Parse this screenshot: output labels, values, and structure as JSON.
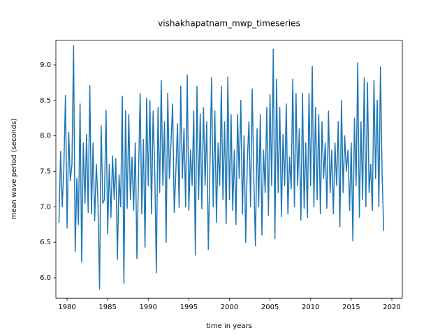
{
  "chart_data": {
    "type": "line",
    "title": "vishakhapatnam_mwp_timeseries",
    "x_label": "time in years",
    "y_label": "mean wave period (seconds)",
    "color": "#1f77b4",
    "xlim": [
      1978.62,
      2021.29
    ],
    "ylim": [
      5.713,
      9.348
    ],
    "xticks": [
      1980,
      1985,
      1990,
      1995,
      2000,
      2005,
      2010,
      2015,
      2020
    ],
    "yticks": [
      {
        "value": 6,
        "label": "6.0"
      },
      {
        "value": 6.5,
        "label": "6.5"
      },
      {
        "value": 7,
        "label": "7.0"
      },
      {
        "value": 7.5,
        "label": "7.5"
      },
      {
        "value": 8,
        "label": "8.0"
      },
      {
        "value": 8.5,
        "label": "8.5"
      },
      {
        "value": 9,
        "label": "9.0"
      }
    ],
    "x": [
      1979,
      1979.2,
      1979.4,
      1979.6,
      1979.8,
      1980,
      1980.2,
      1980.4,
      1980.6,
      1980.8,
      1981,
      1981.2,
      1981.4,
      1981.6,
      1981.8,
      1982,
      1982.2,
      1982.4,
      1982.6,
      1982.8,
      1983,
      1983.2,
      1983.4,
      1983.6,
      1983.8,
      1984,
      1984.2,
      1984.4,
      1984.6,
      1984.8,
      1985,
      1985.2,
      1985.4,
      1985.6,
      1985.8,
      1986,
      1986.2,
      1986.4,
      1986.6,
      1986.8,
      1987,
      1987.2,
      1987.4,
      1987.6,
      1987.8,
      1988,
      1988.2,
      1988.4,
      1988.6,
      1988.8,
      1989,
      1989.2,
      1989.4,
      1989.6,
      1989.8,
      1990,
      1990.2,
      1990.4,
      1990.6,
      1990.8,
      1991,
      1991.2,
      1991.4,
      1991.6,
      1991.8,
      1992,
      1992.2,
      1992.4,
      1992.6,
      1992.8,
      1993,
      1993.2,
      1993.4,
      1993.6,
      1993.8,
      1994,
      1994.2,
      1994.4,
      1994.6,
      1994.8,
      1995,
      1995.2,
      1995.4,
      1995.6,
      1995.8,
      1996,
      1996.2,
      1996.4,
      1996.6,
      1996.8,
      1997,
      1997.2,
      1997.4,
      1997.6,
      1997.8,
      1998,
      1998.2,
      1998.4,
      1998.6,
      1998.8,
      1999,
      1999.2,
      1999.4,
      1999.6,
      1999.8,
      2000,
      2000.2,
      2000.4,
      2000.6,
      2000.8,
      2001,
      2001.2,
      2001.4,
      2001.6,
      2001.8,
      2002,
      2002.2,
      2002.4,
      2002.6,
      2002.8,
      2003,
      2003.2,
      2003.4,
      2003.6,
      2003.8,
      2004,
      2004.2,
      2004.4,
      2004.6,
      2004.8,
      2005,
      2005.2,
      2005.4,
      2005.6,
      2005.8,
      2006,
      2006.2,
      2006.4,
      2006.6,
      2006.8,
      2007,
      2007.2,
      2007.4,
      2007.6,
      2007.8,
      2008,
      2008.2,
      2008.4,
      2008.6,
      2008.8,
      2009,
      2009.2,
      2009.4,
      2009.6,
      2009.8,
      2010,
      2010.2,
      2010.4,
      2010.6,
      2010.8,
      2011,
      2011.2,
      2011.4,
      2011.6,
      2011.8,
      2012,
      2012.2,
      2012.4,
      2012.6,
      2012.8,
      2013,
      2013.2,
      2013.4,
      2013.6,
      2013.8,
      2014,
      2014.2,
      2014.4,
      2014.6,
      2014.8,
      2015,
      2015.2,
      2015.4,
      2015.6,
      2015.8,
      2016,
      2016.2,
      2016.4,
      2016.6,
      2016.8,
      2017,
      2017.2,
      2017.4,
      2017.6,
      2017.8,
      2018,
      2018.2,
      2018.4,
      2018.6,
      2018.8,
      2019
    ],
    "values": [
      6.77,
      7.78,
      7.0,
      7.55,
      8.57,
      6.7,
      8.05,
      7.37,
      7.6,
      9.27,
      6.37,
      7.4,
      6.75,
      8.45,
      6.22,
      7.9,
      7.05,
      8.02,
      6.92,
      8.71,
      6.9,
      7.9,
      6.8,
      7.6,
      7.1,
      5.84,
      8.14,
      7.05,
      7.1,
      8.36,
      6.62,
      7.6,
      6.85,
      7.72,
      7.1,
      7.68,
      6.26,
      7.45,
      7.0,
      8.56,
      5.92,
      8.35,
      6.98,
      8.3,
      7.1,
      7.7,
      6.95,
      7.9,
      6.27,
      7.45,
      8.6,
      6.9,
      7.95,
      6.43,
      8.53,
      7.3,
      8.5,
      6.9,
      8.35,
      7.5,
      6.07,
      8.4,
      7.2,
      8.78,
      7.3,
      8.2,
      6.5,
      8.6,
      7.4,
      7.9,
      8.45,
      6.92,
      7.5,
      8.17,
      6.99,
      8.7,
      7.4,
      8.1,
      7.0,
      8.86,
      6.95,
      7.8,
      7.3,
      8.35,
      6.32,
      8.7,
      7.1,
      8.31,
      6.97,
      8.4,
      7.3,
      8.2,
      6.4,
      7.6,
      8.82,
      7.0,
      8.35,
      6.78,
      7.9,
      7.3,
      8.7,
      7.1,
      8.2,
      6.76,
      8.83,
      7.1,
      8.3,
      6.95,
      7.8,
      6.75,
      8.3,
      7.4,
      8.5,
      6.9,
      8.0,
      6.5,
      7.65,
      8.2,
      7.0,
      8.66,
      7.4,
      6.45,
      8.1,
      7.0,
      8.3,
      6.6,
      7.8,
      7.2,
      8.4,
      6.88,
      8.58,
      7.3,
      9.22,
      6.55,
      8.8,
      7.2,
      8.4,
      6.86,
      8.02,
      7.3,
      8.45,
      6.9,
      7.7,
      7.25,
      8.8,
      7.0,
      8.6,
      7.3,
      8.1,
      6.81,
      8.6,
      6.98,
      7.9,
      6.85,
      8.6,
      7.3,
      8.98,
      7.0,
      8.4,
      7.1,
      8.3,
      6.9,
      8.2,
      7.4,
      7.9,
      6.98,
      8.35,
      7.2,
      7.8,
      6.9,
      7.9,
      7.3,
      8.2,
      6.72,
      8.5,
      7.2,
      8.0,
      7.5,
      7.8,
      6.95,
      7.9,
      6.52,
      8.25,
      7.3,
      9.03,
      6.85,
      8.2,
      7.1,
      8.82,
      7.0,
      8.75,
      7.2,
      7.6,
      6.95,
      8.78,
      7.4,
      8.5,
      7.0,
      8.97,
      7.47,
      6.66
    ]
  }
}
